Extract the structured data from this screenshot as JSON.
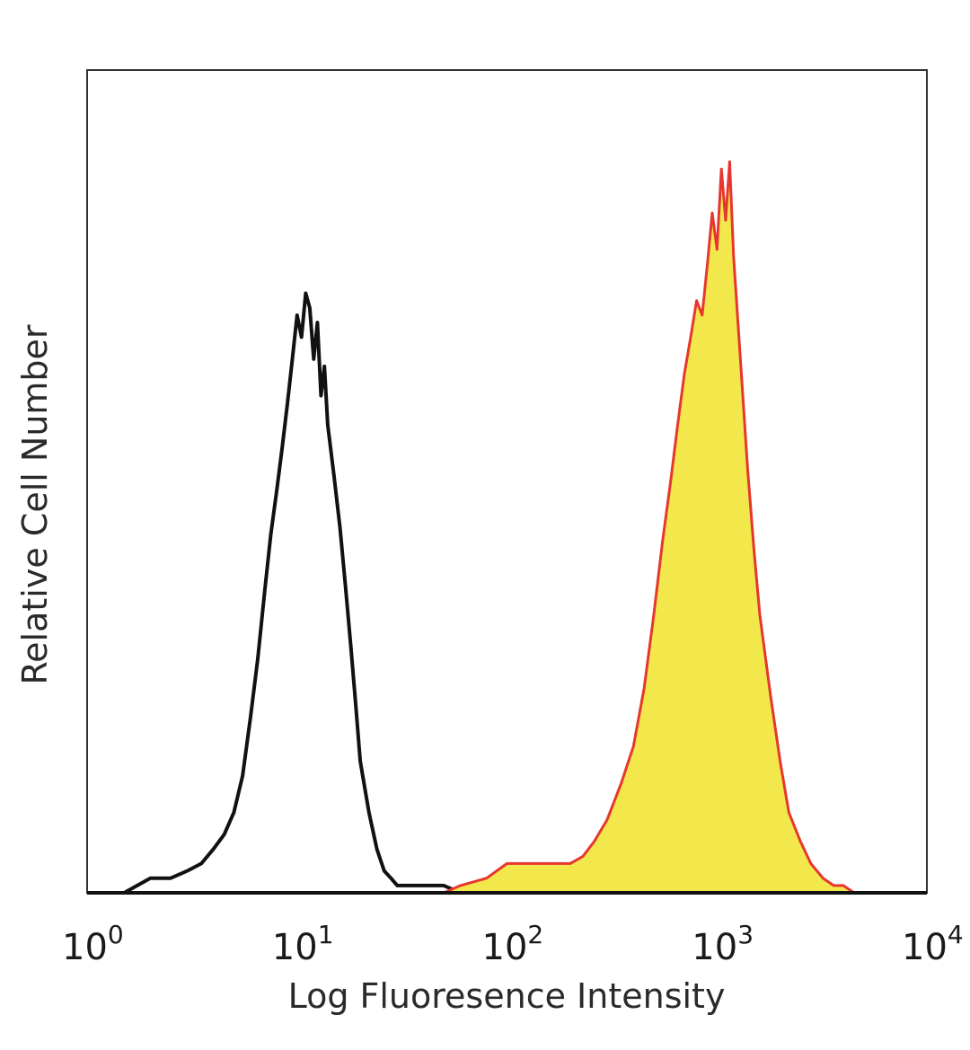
{
  "chart_data": {
    "type": "area",
    "xlabel": "Log Fluoresence Intensity",
    "ylabel": "Relative Cell Number",
    "xscale": "log",
    "xlim": [
      1,
      10000
    ],
    "ylim": [
      0,
      1
    ],
    "grid": false,
    "legend": "none",
    "x_ticks": [
      {
        "base": "10",
        "exp": "0"
      },
      {
        "base": "10",
        "exp": "1"
      },
      {
        "base": "10",
        "exp": "2"
      },
      {
        "base": "10",
        "exp": "3"
      },
      {
        "base": "10",
        "exp": "4"
      }
    ],
    "series": [
      {
        "style": "outline",
        "color": "#111111",
        "x": [
          1.5,
          2,
          2.5,
          3,
          3.5,
          4,
          4.5,
          5,
          5.5,
          6,
          6.5,
          7,
          7.5,
          8,
          8.5,
          9,
          9.5,
          10,
          10.5,
          11,
          11.5,
          12,
          12.5,
          13,
          13.5,
          14,
          15,
          16,
          17,
          18,
          19,
          20,
          22,
          24,
          26,
          28,
          30,
          35,
          40,
          50,
          60
        ],
        "values": [
          0.0,
          0.02,
          0.02,
          0.03,
          0.04,
          0.06,
          0.08,
          0.11,
          0.16,
          0.24,
          0.32,
          0.41,
          0.49,
          0.55,
          0.61,
          0.67,
          0.73,
          0.79,
          0.76,
          0.82,
          0.8,
          0.73,
          0.78,
          0.68,
          0.72,
          0.64,
          0.57,
          0.5,
          0.42,
          0.34,
          0.26,
          0.18,
          0.11,
          0.06,
          0.03,
          0.02,
          0.01,
          0.01,
          0.01,
          0.01,
          0.0
        ]
      },
      {
        "style": "filled",
        "color": "#e6372f",
        "fill": "#f2e84b",
        "x": [
          50,
          60,
          80,
          100,
          120,
          150,
          180,
          200,
          230,
          260,
          300,
          350,
          400,
          450,
          500,
          550,
          600,
          650,
          700,
          750,
          800,
          850,
          900,
          950,
          1000,
          1050,
          1100,
          1150,
          1200,
          1300,
          1400,
          1500,
          1600,
          1800,
          2000,
          2200,
          2500,
          2800,
          3200,
          3600,
          4000,
          4500
        ],
        "values": [
          0.0,
          0.01,
          0.02,
          0.04,
          0.04,
          0.04,
          0.04,
          0.04,
          0.05,
          0.07,
          0.1,
          0.15,
          0.2,
          0.28,
          0.38,
          0.48,
          0.56,
          0.64,
          0.71,
          0.76,
          0.81,
          0.79,
          0.86,
          0.93,
          0.88,
          0.99,
          0.92,
          1.0,
          0.87,
          0.72,
          0.58,
          0.47,
          0.38,
          0.27,
          0.18,
          0.11,
          0.07,
          0.04,
          0.02,
          0.01,
          0.01,
          0.0
        ]
      }
    ]
  }
}
